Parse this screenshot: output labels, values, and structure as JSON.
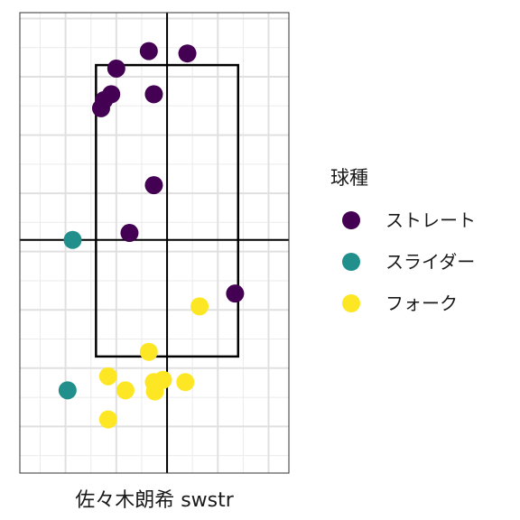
{
  "chart_data": {
    "type": "scatter",
    "title": "",
    "xlabel": "佐々木朗希 swstr",
    "ylabel": "",
    "grid": true,
    "xlim": [
      -1.45,
      1.2
    ],
    "ylim": [
      0.6,
      4.55
    ],
    "axis_lines": {
      "x": 0,
      "y": 2.6
    },
    "strike_zone": {
      "x": [
        -0.7,
        0.7
      ],
      "y": [
        1.6,
        4.1
      ]
    },
    "legend": {
      "title": "球種",
      "position": "right",
      "entries": [
        "ストレート",
        "スライダー",
        "フォーク"
      ]
    },
    "series": [
      {
        "name": "ストレート",
        "color": "#440154",
        "points": [
          {
            "x": -0.18,
            "y": 4.22
          },
          {
            "x": 0.2,
            "y": 4.2
          },
          {
            "x": -0.5,
            "y": 4.07
          },
          {
            "x": -0.55,
            "y": 3.85
          },
          {
            "x": -0.62,
            "y": 3.8
          },
          {
            "x": -0.65,
            "y": 3.73
          },
          {
            "x": -0.13,
            "y": 3.85
          },
          {
            "x": -0.13,
            "y": 3.07
          },
          {
            "x": -0.37,
            "y": 2.66
          },
          {
            "x": 0.67,
            "y": 2.14
          }
        ]
      },
      {
        "name": "スライダー",
        "color": "#21908c",
        "points": [
          {
            "x": -0.93,
            "y": 2.6
          },
          {
            "x": -0.98,
            "y": 1.31
          }
        ]
      },
      {
        "name": "フォーク",
        "color": "#fde725",
        "points": [
          {
            "x": 0.32,
            "y": 2.03
          },
          {
            "x": -0.18,
            "y": 1.64
          },
          {
            "x": -0.58,
            "y": 1.43
          },
          {
            "x": -0.41,
            "y": 1.31
          },
          {
            "x": -0.13,
            "y": 1.38
          },
          {
            "x": -0.04,
            "y": 1.4
          },
          {
            "x": -0.12,
            "y": 1.3
          },
          {
            "x": 0.18,
            "y": 1.38
          },
          {
            "x": -0.58,
            "y": 1.06
          }
        ]
      }
    ]
  }
}
